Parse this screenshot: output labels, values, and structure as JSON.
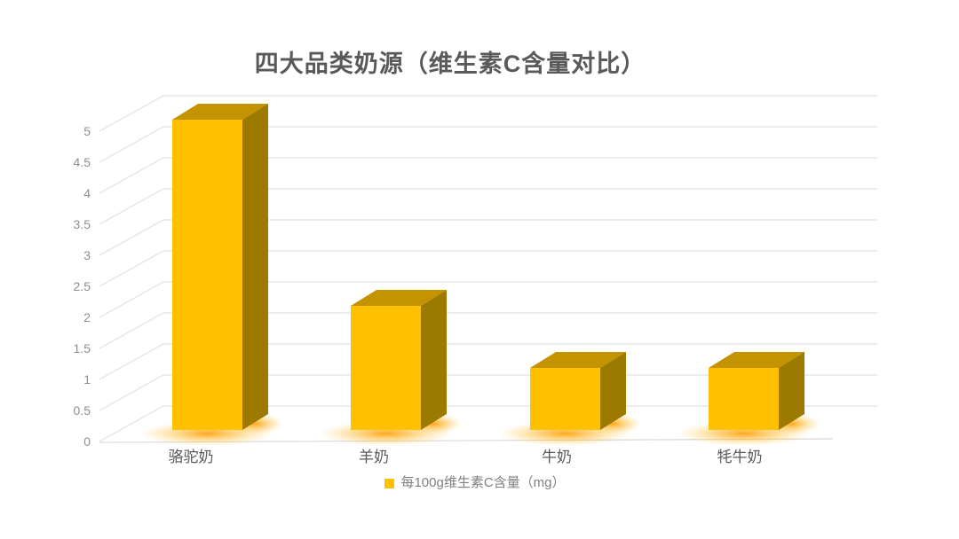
{
  "chart_data": {
    "type": "bar",
    "style": "3d-column",
    "title": "四大品类奶源（维生素C含量对比）",
    "categories": [
      "骆驼奶",
      "羊奶",
      "牛奶",
      "牦牛奶"
    ],
    "series": [
      {
        "name": "每100g维生素C含量（mg）",
        "values": [
          5,
          2,
          1,
          1
        ]
      }
    ],
    "xlabel": "",
    "ylabel": "",
    "ylim": [
      0,
      5
    ],
    "ytick_step": 0.5,
    "ytick_labels": [
      "0",
      "0.5",
      "1",
      "1.5",
      "2",
      "2.5",
      "3",
      "3.5",
      "4",
      "4.5",
      "5"
    ],
    "grid": true,
    "legend_position": "bottom",
    "colors": {
      "background": "#FFFFFF",
      "bar_front": "#FFC000",
      "bar_top": "#C49400",
      "bar_side": "#9C7A00",
      "glow": "#FFA51F",
      "gridline": "#DBDBDB",
      "axis_line": "#D9D9D9",
      "title_text": "#595959",
      "tick_text": "#8E8E8E",
      "category_text": "#595959",
      "legend_text": "#808080"
    }
  },
  "legend": {
    "label": "每100g维生素C含量（mg）",
    "marker_color": "#FFC000"
  }
}
